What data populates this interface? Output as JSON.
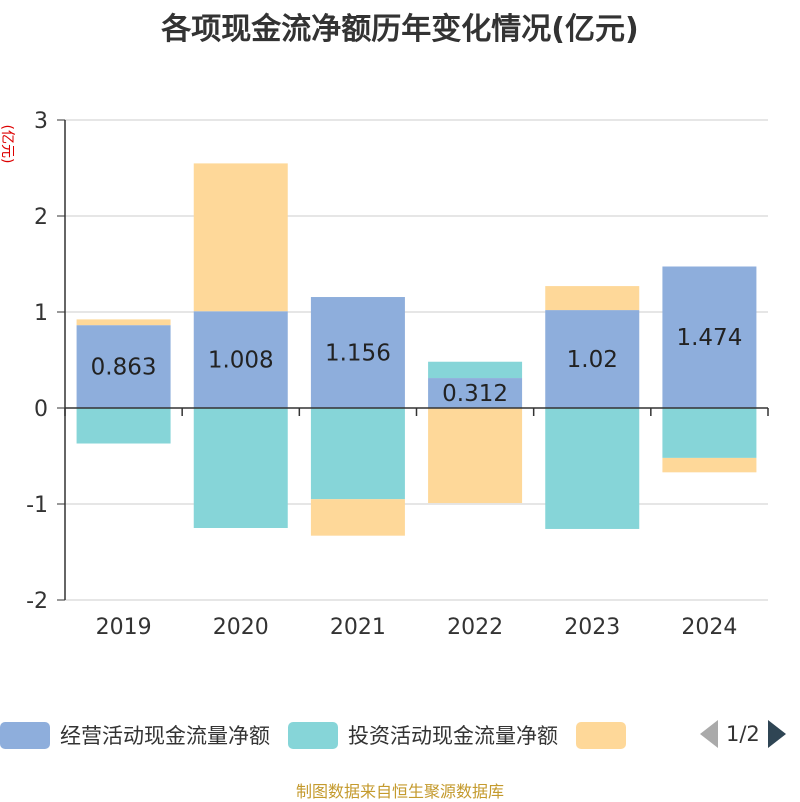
{
  "title": "各项现金流净额历年变化情况(亿元)",
  "y_unit": "(亿元)",
  "source": "制图数据来自恒生聚源数据库",
  "pager": {
    "text": "1/2"
  },
  "colors": {
    "operating": "#8eaedc",
    "investing": "#86d5d8",
    "financing": "#fed899"
  },
  "chart_data": {
    "type": "bar",
    "stacked": true,
    "categories": [
      "2019",
      "2020",
      "2021",
      "2022",
      "2023",
      "2024"
    ],
    "ylim": [
      -2,
      3
    ],
    "yticks": [
      3,
      2,
      1,
      0,
      -1,
      -2
    ],
    "ylabel": "(亿元)",
    "series": [
      {
        "name": "经营活动现金流量净额",
        "values": [
          0.863,
          1.008,
          1.156,
          0.312,
          1.02,
          1.474
        ],
        "labels": [
          "0.863",
          "1.008",
          "1.156",
          "0.312",
          "1.02",
          "1.474"
        ]
      },
      {
        "name": "投资活动现金流量净额",
        "values": [
          -0.37,
          -1.25,
          -0.95,
          0.17,
          -1.26,
          -0.52
        ]
      },
      {
        "name": "",
        "values": [
          0.06,
          1.54,
          -0.38,
          -0.99,
          0.25,
          -0.15
        ]
      }
    ],
    "legend_position": "bottom",
    "grid": true
  }
}
